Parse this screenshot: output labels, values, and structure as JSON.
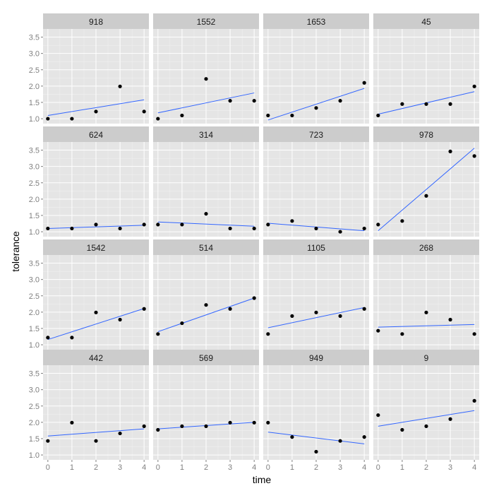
{
  "chart_data": {
    "type": "scatter",
    "layout": "facet-grid",
    "xlabel": "time",
    "ylabel": "tolerance",
    "xlim": [
      -0.2,
      4.2
    ],
    "ylim": [
      0.85,
      3.75
    ],
    "x_ticks": [
      0,
      1,
      2,
      3,
      4
    ],
    "y_ticks": [
      1.0,
      1.5,
      2.0,
      2.5,
      3.0,
      3.5
    ],
    "y_tick_labels": [
      "1.0",
      "1.5",
      "2.0",
      "2.5",
      "3.0",
      "3.5"
    ],
    "x": [
      0,
      1,
      2,
      3,
      4
    ],
    "grid": true,
    "point_color": "#000000",
    "line_color": "#3366FF",
    "panel_background": "#E5E5E5",
    "strip_background": "#CCCCCC",
    "series": [
      {
        "name": "918",
        "values": [
          1.0,
          1.0,
          1.22,
          1.99,
          1.22
        ],
        "fit": [
          1.1,
          1.58
        ]
      },
      {
        "name": "1552",
        "values": [
          1.0,
          1.1,
          2.22,
          1.55,
          1.55
        ],
        "fit": [
          1.18,
          1.79
        ]
      },
      {
        "name": "1653",
        "values": [
          1.1,
          1.1,
          1.33,
          1.55,
          2.1
        ],
        "fit": [
          0.96,
          1.93
        ]
      },
      {
        "name": "45",
        "values": [
          1.1,
          1.45,
          1.45,
          1.45,
          1.99
        ],
        "fit": [
          1.14,
          1.83
        ]
      },
      {
        "name": "624",
        "values": [
          1.1,
          1.1,
          1.22,
          1.1,
          1.22
        ],
        "fit": [
          1.1,
          1.2
        ]
      },
      {
        "name": "314",
        "values": [
          1.22,
          1.22,
          1.55,
          1.1,
          1.1
        ],
        "fit": [
          1.3,
          1.17
        ]
      },
      {
        "name": "723",
        "values": [
          1.22,
          1.33,
          1.1,
          1.0,
          1.1
        ],
        "fit": [
          1.26,
          1.03
        ]
      },
      {
        "name": "978",
        "values": [
          1.22,
          1.33,
          2.1,
          3.46,
          3.32
        ],
        "fit": [
          1.03,
          3.56
        ]
      },
      {
        "name": "1542",
        "values": [
          1.22,
          1.22,
          1.99,
          1.77,
          2.1
        ],
        "fit": [
          1.16,
          2.11
        ]
      },
      {
        "name": "514",
        "values": [
          1.33,
          1.66,
          2.22,
          2.1,
          2.43
        ],
        "fit": [
          1.4,
          2.43
        ]
      },
      {
        "name": "1105",
        "values": [
          1.33,
          1.88,
          1.99,
          1.88,
          2.1
        ],
        "fit": [
          1.52,
          2.14
        ]
      },
      {
        "name": "268",
        "values": [
          1.43,
          1.33,
          1.99,
          1.77,
          1.33
        ],
        "fit": [
          1.54,
          1.62
        ]
      },
      {
        "name": "442",
        "values": [
          1.43,
          1.99,
          1.43,
          1.66,
          1.88
        ],
        "fit": [
          1.58,
          1.8
        ]
      },
      {
        "name": "569",
        "values": [
          1.77,
          1.88,
          1.88,
          1.99,
          1.99
        ],
        "fit": [
          1.8,
          2.0
        ]
      },
      {
        "name": "949",
        "values": [
          1.99,
          1.55,
          1.1,
          1.43,
          1.55
        ],
        "fit": [
          1.7,
          1.34
        ]
      },
      {
        "name": "9",
        "values": [
          2.22,
          1.77,
          1.88,
          2.1,
          2.66
        ],
        "fit": [
          1.88,
          2.36
        ]
      }
    ]
  }
}
